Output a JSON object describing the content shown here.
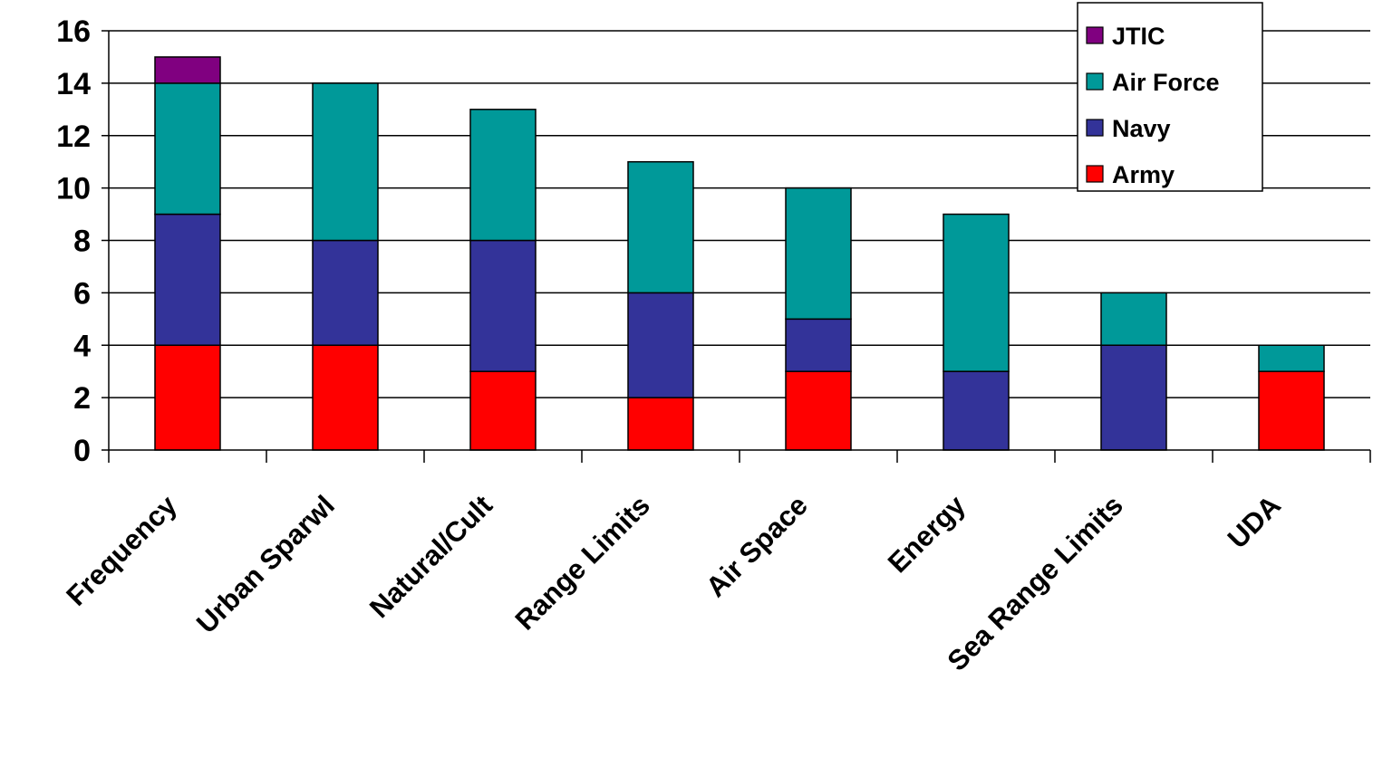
{
  "chart_data": {
    "type": "bar",
    "stacked": true,
    "title": "",
    "xlabel": "",
    "ylabel": "",
    "ylim": [
      0,
      16
    ],
    "yticks": [
      "0",
      "2",
      "4",
      "6",
      "8",
      "10",
      "12",
      "14",
      "16"
    ],
    "grid": true,
    "legend_position": "top-right",
    "categories": [
      "Frequency",
      "Urban Sparwl",
      "Natural/Cult",
      "Range Limits",
      "Air Space",
      "Energy",
      "Sea Range Limits",
      "UDA"
    ],
    "series": [
      {
        "name": "Army",
        "color": "#ff0000",
        "values": [
          4,
          4,
          3,
          2,
          3,
          0,
          0,
          3
        ]
      },
      {
        "name": "Navy",
        "color": "#333399",
        "values": [
          5,
          4,
          5,
          4,
          2,
          3,
          4,
          0
        ]
      },
      {
        "name": "Air Force",
        "color": "#009999",
        "values": [
          5,
          6,
          5,
          5,
          5,
          6,
          2,
          1
        ]
      },
      {
        "name": "JTIC",
        "color": "#800080",
        "values": [
          1,
          0,
          0,
          0,
          0,
          0,
          0,
          0
        ]
      }
    ]
  }
}
